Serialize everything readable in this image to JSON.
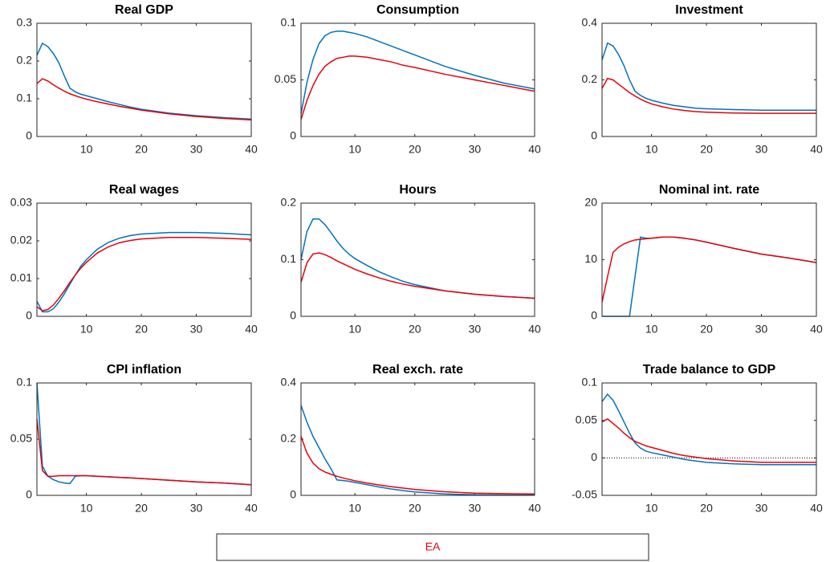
{
  "chart_data": [
    {
      "type": "line",
      "title": "Real GDP",
      "xlim": [
        1,
        40
      ],
      "ylim": [
        0,
        0.3
      ],
      "xticks": [
        10,
        20,
        30,
        40
      ],
      "yticks": [
        0,
        0.1,
        0.2,
        0.3
      ],
      "x": [
        1,
        2,
        3,
        4,
        5,
        6,
        7,
        8,
        9,
        10,
        12,
        14,
        16,
        18,
        20,
        25,
        30,
        35,
        40
      ],
      "series": [
        {
          "color": "#0072bd",
          "values": [
            0.215,
            0.247,
            0.238,
            0.22,
            0.195,
            0.16,
            0.128,
            0.118,
            0.112,
            0.108,
            0.1,
            0.092,
            0.085,
            0.078,
            0.072,
            0.062,
            0.055,
            0.05,
            0.046
          ]
        },
        {
          "name": "EA",
          "color": "#e8000b",
          "values": [
            0.14,
            0.153,
            0.147,
            0.137,
            0.128,
            0.12,
            0.113,
            0.108,
            0.103,
            0.099,
            0.092,
            0.086,
            0.08,
            0.075,
            0.07,
            0.06,
            0.053,
            0.048,
            0.044
          ]
        }
      ]
    },
    {
      "type": "line",
      "title": "Consumption",
      "xlim": [
        1,
        40
      ],
      "ylim": [
        0,
        0.1
      ],
      "xticks": [
        10,
        20,
        30,
        40
      ],
      "yticks": [
        0,
        0.05,
        0.1
      ],
      "x": [
        1,
        2,
        3,
        4,
        5,
        6,
        7,
        8,
        9,
        10,
        12,
        14,
        16,
        18,
        20,
        25,
        30,
        35,
        40
      ],
      "series": [
        {
          "color": "#0072bd",
          "values": [
            0.02,
            0.048,
            0.068,
            0.082,
            0.089,
            0.092,
            0.093,
            0.093,
            0.092,
            0.091,
            0.088,
            0.084,
            0.08,
            0.076,
            0.072,
            0.062,
            0.054,
            0.047,
            0.042
          ]
        },
        {
          "name": "EA",
          "color": "#e8000b",
          "values": [
            0.015,
            0.032,
            0.045,
            0.055,
            0.062,
            0.066,
            0.069,
            0.07,
            0.071,
            0.071,
            0.07,
            0.068,
            0.066,
            0.063,
            0.061,
            0.055,
            0.05,
            0.045,
            0.04
          ]
        }
      ]
    },
    {
      "type": "line",
      "title": "Investment",
      "xlim": [
        1,
        40
      ],
      "ylim": [
        0,
        0.4
      ],
      "xticks": [
        10,
        20,
        30,
        40
      ],
      "yticks": [
        0,
        0.2,
        0.4
      ],
      "x": [
        1,
        2,
        3,
        4,
        5,
        6,
        7,
        8,
        9,
        10,
        12,
        14,
        16,
        18,
        20,
        25,
        30,
        35,
        40
      ],
      "series": [
        {
          "color": "#0072bd",
          "values": [
            0.27,
            0.33,
            0.32,
            0.29,
            0.25,
            0.2,
            0.16,
            0.145,
            0.135,
            0.128,
            0.118,
            0.11,
            0.105,
            0.1,
            0.098,
            0.095,
            0.093,
            0.093,
            0.093
          ]
        },
        {
          "name": "EA",
          "color": "#e8000b",
          "values": [
            0.17,
            0.205,
            0.2,
            0.185,
            0.17,
            0.155,
            0.143,
            0.132,
            0.123,
            0.115,
            0.105,
            0.097,
            0.092,
            0.088,
            0.086,
            0.083,
            0.082,
            0.082,
            0.082
          ]
        }
      ]
    },
    {
      "type": "line",
      "title": "Real wages",
      "xlim": [
        1,
        40
      ],
      "ylim": [
        0,
        0.03
      ],
      "xticks": [
        10,
        20,
        30,
        40
      ],
      "yticks": [
        0,
        0.01,
        0.02,
        0.03
      ],
      "x": [
        1,
        2,
        3,
        4,
        5,
        6,
        7,
        8,
        9,
        10,
        12,
        14,
        16,
        18,
        20,
        25,
        30,
        35,
        40
      ],
      "series": [
        {
          "color": "#0072bd",
          "values": [
            0.004,
            0.0012,
            0.0012,
            0.002,
            0.0038,
            0.006,
            0.0085,
            0.011,
            0.0133,
            0.015,
            0.0178,
            0.0196,
            0.0207,
            0.0214,
            0.0218,
            0.0222,
            0.0222,
            0.022,
            0.0216
          ]
        },
        {
          "name": "EA",
          "color": "#e8000b",
          "values": [
            0.0025,
            0.0015,
            0.0018,
            0.003,
            0.0048,
            0.0068,
            0.009,
            0.011,
            0.0128,
            0.0143,
            0.0168,
            0.0184,
            0.0195,
            0.0201,
            0.0205,
            0.0209,
            0.0209,
            0.0207,
            0.0204
          ]
        }
      ]
    },
    {
      "type": "line",
      "title": "Hours",
      "xlim": [
        1,
        40
      ],
      "ylim": [
        0,
        0.2
      ],
      "xticks": [
        10,
        20,
        30,
        40
      ],
      "yticks": [
        0,
        0.1,
        0.2
      ],
      "x": [
        1,
        2,
        3,
        4,
        5,
        6,
        7,
        8,
        9,
        10,
        12,
        14,
        16,
        18,
        20,
        25,
        30,
        35,
        40
      ],
      "series": [
        {
          "color": "#0072bd",
          "values": [
            0.1,
            0.15,
            0.172,
            0.172,
            0.162,
            0.148,
            0.133,
            0.12,
            0.11,
            0.102,
            0.09,
            0.079,
            0.07,
            0.062,
            0.056,
            0.045,
            0.039,
            0.035,
            0.032
          ]
        },
        {
          "name": "EA",
          "color": "#e8000b",
          "values": [
            0.06,
            0.095,
            0.11,
            0.112,
            0.109,
            0.104,
            0.098,
            0.093,
            0.088,
            0.083,
            0.075,
            0.068,
            0.062,
            0.057,
            0.053,
            0.045,
            0.039,
            0.035,
            0.032
          ]
        }
      ]
    },
    {
      "type": "line",
      "title": "Nominal int. rate",
      "xlim": [
        1,
        40
      ],
      "ylim": [
        0,
        20
      ],
      "xticks": [
        10,
        20,
        30,
        40
      ],
      "yticks": [
        0,
        10,
        20
      ],
      "x": [
        1,
        2,
        3,
        4,
        5,
        6,
        7,
        8,
        9,
        10,
        12,
        14,
        16,
        18,
        20,
        25,
        30,
        35,
        40
      ],
      "series": [
        {
          "color": "#0072bd",
          "values": [
            0,
            0,
            0,
            0,
            0,
            0,
            7,
            14,
            13.8,
            13.8,
            14,
            14,
            13.8,
            13.5,
            13.1,
            12,
            11,
            10.3,
            9.5
          ]
        },
        {
          "name": "EA",
          "color": "#e8000b",
          "values": [
            2.5,
            7,
            11.3,
            12.2,
            12.8,
            13.2,
            13.5,
            13.6,
            13.7,
            13.8,
            14,
            14,
            13.8,
            13.5,
            13.1,
            12,
            11,
            10.3,
            9.5
          ]
        }
      ]
    },
    {
      "type": "line",
      "title": "CPI inflation",
      "xlim": [
        1,
        40
      ],
      "ylim": [
        0,
        0.1
      ],
      "xticks": [
        10,
        20,
        30,
        40
      ],
      "yticks": [
        0,
        0.05,
        0.1
      ],
      "x": [
        1,
        2,
        3,
        4,
        5,
        6,
        7,
        8,
        9,
        10,
        12,
        14,
        16,
        18,
        20,
        25,
        30,
        35,
        40
      ],
      "series": [
        {
          "color": "#0072bd",
          "values": [
            0.1,
            0.026,
            0.017,
            0.014,
            0.012,
            0.011,
            0.0105,
            0.017,
            0.0175,
            0.0175,
            0.017,
            0.0165,
            0.016,
            0.0155,
            0.015,
            0.0135,
            0.012,
            0.011,
            0.0095
          ]
        },
        {
          "name": "EA",
          "color": "#e8000b",
          "values": [
            0.068,
            0.022,
            0.017,
            0.017,
            0.0175,
            0.0175,
            0.0175,
            0.0175,
            0.0175,
            0.0175,
            0.017,
            0.0165,
            0.016,
            0.0155,
            0.015,
            0.0135,
            0.012,
            0.011,
            0.0095
          ]
        }
      ]
    },
    {
      "type": "line",
      "title": "Real exch. rate",
      "xlim": [
        1,
        40
      ],
      "ylim": [
        0,
        0.4
      ],
      "xticks": [
        10,
        20,
        30,
        40
      ],
      "yticks": [
        0,
        0.2,
        0.4
      ],
      "x": [
        1,
        2,
        3,
        4,
        5,
        6,
        7,
        8,
        9,
        10,
        12,
        14,
        16,
        18,
        20,
        25,
        30,
        35,
        40
      ],
      "series": [
        {
          "color": "#0072bd",
          "values": [
            0.32,
            0.26,
            0.21,
            0.17,
            0.13,
            0.095,
            0.055,
            0.053,
            0.05,
            0.046,
            0.038,
            0.03,
            0.023,
            0.017,
            0.012,
            0.005,
            0.002,
            0.001,
            0.001
          ]
        },
        {
          "name": "EA",
          "color": "#e8000b",
          "values": [
            0.21,
            0.15,
            0.115,
            0.095,
            0.083,
            0.075,
            0.068,
            0.062,
            0.057,
            0.052,
            0.044,
            0.037,
            0.031,
            0.026,
            0.021,
            0.013,
            0.008,
            0.006,
            0.005
          ]
        }
      ]
    },
    {
      "type": "line",
      "title": "Trade balance to GDP",
      "xlim": [
        1,
        40
      ],
      "ylim": [
        -0.05,
        0.1
      ],
      "xticks": [
        10,
        20,
        30,
        40
      ],
      "yticks": [
        -0.05,
        0,
        0.05,
        0.1
      ],
      "zero_line": true,
      "x": [
        1,
        2,
        3,
        4,
        5,
        6,
        7,
        8,
        9,
        10,
        12,
        14,
        16,
        18,
        20,
        25,
        30,
        35,
        40
      ],
      "series": [
        {
          "color": "#0072bd",
          "values": [
            0.075,
            0.085,
            0.077,
            0.063,
            0.048,
            0.033,
            0.02,
            0.013,
            0.009,
            0.007,
            0.004,
            0.001,
            -0.002,
            -0.004,
            -0.006,
            -0.008,
            -0.009,
            -0.009,
            -0.009
          ]
        },
        {
          "name": "EA",
          "color": "#e8000b",
          "values": [
            0.048,
            0.052,
            0.046,
            0.04,
            0.033,
            0.027,
            0.022,
            0.019,
            0.016,
            0.014,
            0.01,
            0.006,
            0.003,
            0.001,
            -0.001,
            -0.004,
            -0.006,
            -0.006,
            -0.006
          ]
        }
      ]
    }
  ]
}
